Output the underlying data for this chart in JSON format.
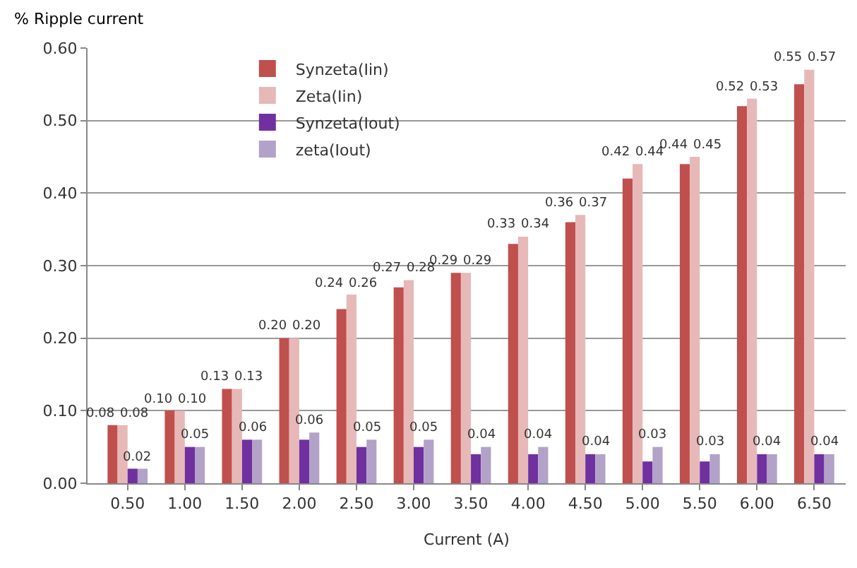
{
  "chart_data": {
    "type": "bar",
    "ylabel": "% Ripple current",
    "xlabel": "Current (A)",
    "categories": [
      "0.50",
      "1.00",
      "1.50",
      "2.00",
      "2.50",
      "3.00",
      "3.50",
      "4.00",
      "4.50",
      "5.00",
      "5.50",
      "6.00",
      "6.50"
    ],
    "series": [
      {
        "name": "Synzeta(Iin)",
        "color": "#c0504d",
        "values": [
          0.08,
          0.1,
          0.13,
          0.2,
          0.24,
          0.27,
          0.29,
          0.33,
          0.36,
          0.42,
          0.44,
          0.52,
          0.55
        ],
        "value_labels": [
          "0.08",
          "0.10",
          "0.13",
          "0.20",
          "0.24",
          "0.27",
          "0.29",
          "0.33",
          "0.36",
          "0.42",
          "0.44",
          "0.52",
          "0.55"
        ]
      },
      {
        "name": "Zeta(Iin)",
        "color": "#e6b9b8",
        "values": [
          0.08,
          0.1,
          0.13,
          0.2,
          0.26,
          0.28,
          0.29,
          0.34,
          0.37,
          0.44,
          0.45,
          0.53,
          0.57
        ],
        "value_labels": [
          "0.08",
          "0.10",
          "0.13",
          "0.20",
          "0.26",
          "0.28",
          "0.29",
          "0.34",
          "0.37",
          "0.44",
          "0.45",
          "0.53",
          "0.57"
        ]
      },
      {
        "name": "Synzeta(Iout)",
        "color": "#7030a0",
        "values": [
          0.02,
          0.05,
          0.06,
          0.06,
          0.05,
          0.05,
          0.04,
          0.04,
          0.04,
          0.03,
          0.03,
          0.04,
          0.04
        ],
        "value_labels": [
          "0.02",
          "0.05",
          "0.06",
          "0.06",
          "0.05",
          "0.05",
          "0.04",
          "0.04",
          "0.04",
          "0.03",
          "0.03",
          "0.04",
          "0.04"
        ]
      },
      {
        "name": "zeta(Iout)",
        "color": "#b3a2c7",
        "values": [
          0.02,
          0.05,
          0.06,
          0.07,
          0.06,
          0.06,
          0.05,
          0.05,
          0.04,
          0.05,
          0.04,
          0.04,
          0.04
        ]
      }
    ],
    "ylim": [
      0,
      0.6
    ],
    "yticks": [
      {
        "value": 0,
        "label": "0.00"
      },
      {
        "value": 0.1,
        "label": "0.10"
      },
      {
        "value": 0.2,
        "label": "0.20"
      },
      {
        "value": 0.3,
        "label": "0.30"
      },
      {
        "value": 0.4,
        "label": "0.40"
      },
      {
        "value": 0.5,
        "label": "0.50"
      },
      {
        "value": 0.6,
        "label": "0.60"
      }
    ],
    "grid": "y",
    "legend": "top left"
  }
}
